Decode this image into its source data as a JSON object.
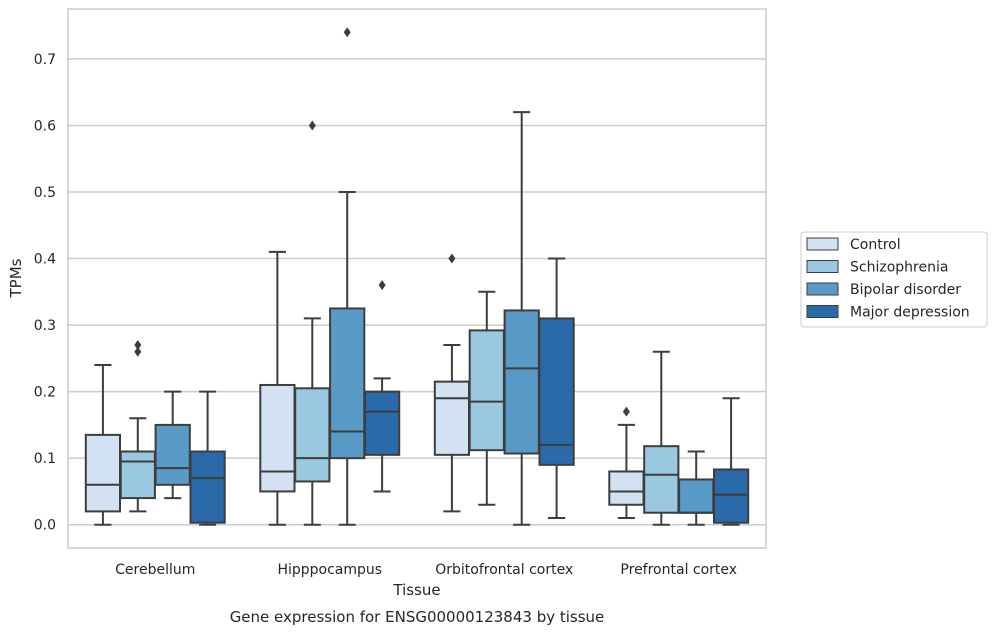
{
  "chart_data": {
    "type": "box",
    "caption": "Gene expression for ENSG00000123843 by tissue",
    "xlabel": "Tissue",
    "ylabel": "TPMs",
    "ylim": [
      -0.035,
      0.775
    ],
    "yticks": [
      0.0,
      0.1,
      0.2,
      0.3,
      0.4,
      0.5,
      0.6,
      0.7
    ],
    "ytick_labels": [
      "0.0",
      "0.1",
      "0.2",
      "0.3",
      "0.4",
      "0.5",
      "0.6",
      "0.7"
    ],
    "grid": "horizontal",
    "legend_position": "right",
    "categories": [
      "Cerebellum",
      "Hipppocampus",
      "Orbitofrontal cortex",
      "Prefrontal cortex"
    ],
    "series": [
      {
        "name": "Control",
        "color": "#d2e2f2",
        "boxes": [
          {
            "min": 0.0,
            "q1": 0.02,
            "median": 0.06,
            "q3": 0.135,
            "max": 0.24,
            "outliers": []
          },
          {
            "min": 0.0,
            "q1": 0.05,
            "median": 0.08,
            "q3": 0.21,
            "max": 0.41,
            "outliers": []
          },
          {
            "min": 0.02,
            "q1": 0.105,
            "median": 0.19,
            "q3": 0.215,
            "max": 0.27,
            "outliers": [
              0.4
            ]
          },
          {
            "min": 0.01,
            "q1": 0.03,
            "median": 0.05,
            "q3": 0.08,
            "max": 0.15,
            "outliers": [
              0.17
            ]
          }
        ]
      },
      {
        "name": "Schizophrenia",
        "color": "#9ac8e0",
        "boxes": [
          {
            "min": 0.02,
            "q1": 0.04,
            "median": 0.095,
            "q3": 0.11,
            "max": 0.16,
            "outliers": [
              0.26,
              0.27
            ]
          },
          {
            "min": 0.0,
            "q1": 0.065,
            "median": 0.1,
            "q3": 0.205,
            "max": 0.31,
            "outliers": [
              0.6
            ]
          },
          {
            "min": 0.03,
            "q1": 0.112,
            "median": 0.185,
            "q3": 0.292,
            "max": 0.35,
            "outliers": []
          },
          {
            "min": 0.0,
            "q1": 0.018,
            "median": 0.075,
            "q3": 0.118,
            "max": 0.26,
            "outliers": []
          }
        ]
      },
      {
        "name": "Bipolar disorder",
        "color": "#5a9ac7",
        "boxes": [
          {
            "min": 0.04,
            "q1": 0.06,
            "median": 0.085,
            "q3": 0.15,
            "max": 0.2,
            "outliers": []
          },
          {
            "min": 0.0,
            "q1": 0.1,
            "median": 0.14,
            "q3": 0.325,
            "max": 0.5,
            "outliers": [
              0.74
            ]
          },
          {
            "min": 0.0,
            "q1": 0.107,
            "median": 0.235,
            "q3": 0.322,
            "max": 0.62,
            "outliers": []
          },
          {
            "min": 0.0,
            "q1": 0.018,
            "median": 0.018,
            "q3": 0.068,
            "max": 0.11,
            "outliers": []
          }
        ]
      },
      {
        "name": "Major depression",
        "color": "#2b6aa8",
        "boxes": [
          {
            "min": 0.0,
            "q1": 0.003,
            "median": 0.07,
            "q3": 0.11,
            "max": 0.2,
            "outliers": []
          },
          {
            "min": 0.05,
            "q1": 0.105,
            "median": 0.17,
            "q3": 0.2,
            "max": 0.22,
            "outliers": [
              0.36
            ]
          },
          {
            "min": 0.01,
            "q1": 0.09,
            "median": 0.12,
            "q3": 0.31,
            "max": 0.4,
            "outliers": []
          },
          {
            "min": 0.0,
            "q1": 0.003,
            "median": 0.045,
            "q3": 0.083,
            "max": 0.19,
            "outliers": []
          }
        ]
      }
    ]
  }
}
